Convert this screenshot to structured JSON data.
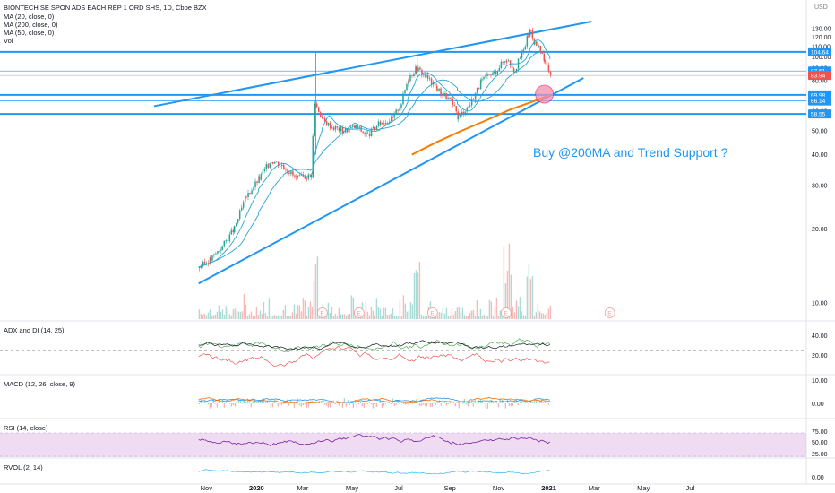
{
  "header": {
    "symbol": "BIONTECH SE SPON ADS EACH REP 1 ORD SHS, 1D, Cboe BZX",
    "indicators": [
      "MA (20, close, 0)",
      "MA (200, close, 0)",
      "MA (50, close, 0)",
      "Vol"
    ],
    "currency": "USD"
  },
  "annotation": "Buy @200MA and Trend Support ?",
  "colors": {
    "candle_up": "#26a69a",
    "candle_down": "#ef5350",
    "trend_line": "#2196f3",
    "ma200": "#f57c00",
    "ma_line": "#26a6d1",
    "adx": "#131722",
    "di_plus": "#4caf50",
    "di_minus": "#ef5350",
    "rsi": "#7b1fa2",
    "rsi_band": "#e1bee7",
    "price_label": "#2196f3",
    "last_price": "#ef5350",
    "earnings_marker": "#ef9a9a"
  },
  "chart_data": [
    {
      "type": "candlestick",
      "title": "BIONTECH SE SPON ADS EACH REP 1 ORD SHS, 1D, Cboe BZX",
      "y_axis": {
        "unit": "USD",
        "ticks": [
          "130.00",
          "120.00",
          "110.00",
          "100.00",
          "90.00",
          "80.00",
          "70.00",
          "60.00",
          "50.00",
          "40.00",
          "30.00",
          "20.00",
          "10.00"
        ]
      },
      "x_axis": {
        "ticks": [
          "Nov",
          "2020",
          "Mar",
          "May",
          "Jul",
          "Sep",
          "Nov",
          "2021",
          "Mar",
          "May",
          "Jul"
        ]
      },
      "price_labels": [
        {
          "value": "104.64",
          "last": false
        },
        {
          "value": "87.51",
          "last": false
        },
        {
          "value": "83.94",
          "last": true
        },
        {
          "value": "69.98",
          "last": false
        },
        {
          "value": "66.14",
          "last": false
        },
        {
          "value": "58.55",
          "last": false
        }
      ],
      "horizontal_levels": [
        104.64,
        69.98,
        58.55
      ],
      "thin_levels": [
        87.51,
        83.94
      ],
      "close_series": [
        [
          "2019-10-22",
          14
        ],
        [
          "2019-11-05",
          15
        ],
        [
          "2019-11-20",
          17
        ],
        [
          "2019-12-05",
          20
        ],
        [
          "2019-12-20",
          27
        ],
        [
          "2020-01-05",
          32
        ],
        [
          "2020-01-20",
          38
        ],
        [
          "2020-02-05",
          36
        ],
        [
          "2020-02-20",
          32
        ],
        [
          "2020-03-10",
          33
        ],
        [
          "2020-03-15",
          65
        ],
        [
          "2020-03-25",
          55
        ],
        [
          "2020-04-05",
          52
        ],
        [
          "2020-04-20",
          50
        ],
        [
          "2020-05-05",
          52
        ],
        [
          "2020-05-20",
          48
        ],
        [
          "2020-06-05",
          54
        ],
        [
          "2020-06-20",
          56
        ],
        [
          "2020-07-01",
          65
        ],
        [
          "2020-07-10",
          82
        ],
        [
          "2020-07-20",
          90
        ],
        [
          "2020-08-01",
          83
        ],
        [
          "2020-08-15",
          74
        ],
        [
          "2020-09-01",
          66
        ],
        [
          "2020-09-10",
          57
        ],
        [
          "2020-09-25",
          64
        ],
        [
          "2020-10-10",
          80
        ],
        [
          "2020-10-25",
          86
        ],
        [
          "2020-11-05",
          95
        ],
        [
          "2020-11-10",
          98
        ],
        [
          "2020-11-20",
          88
        ],
        [
          "2020-12-01",
          106
        ],
        [
          "2020-12-07",
          123
        ],
        [
          "2020-12-10",
          128
        ],
        [
          "2020-12-15",
          114
        ],
        [
          "2020-12-20",
          108
        ],
        [
          "2020-12-28",
          95
        ],
        [
          "2021-01-04",
          84
        ]
      ],
      "ma200_series": [
        [
          "2020-07-15",
          40
        ],
        [
          "2020-08-15",
          45
        ],
        [
          "2020-09-15",
          50
        ],
        [
          "2020-10-15",
          55
        ],
        [
          "2020-11-15",
          61
        ],
        [
          "2020-12-15",
          66
        ],
        [
          "2021-01-04",
          70
        ]
      ]
    },
    {
      "type": "line",
      "title": "ADX and DI (14, 25)",
      "y_axis": {
        "ticks": [
          "40.00",
          "20.00"
        ]
      },
      "series": [
        {
          "name": "ADX"
        },
        {
          "name": "+DI"
        },
        {
          "name": "-DI"
        }
      ]
    },
    {
      "type": "line",
      "title": "MACD (12, 26, close, 9)",
      "y_axis": {
        "ticks": [
          "10.00",
          "0.00"
        ]
      }
    },
    {
      "type": "line",
      "title": "RSI (14, close)",
      "y_axis": {
        "ticks": [
          "75.00",
          "50.00",
          "25.00"
        ]
      }
    },
    {
      "type": "line",
      "title": "RVOL (2, 14)",
      "y_axis": {
        "ticks": [
          "0.00"
        ]
      }
    }
  ]
}
